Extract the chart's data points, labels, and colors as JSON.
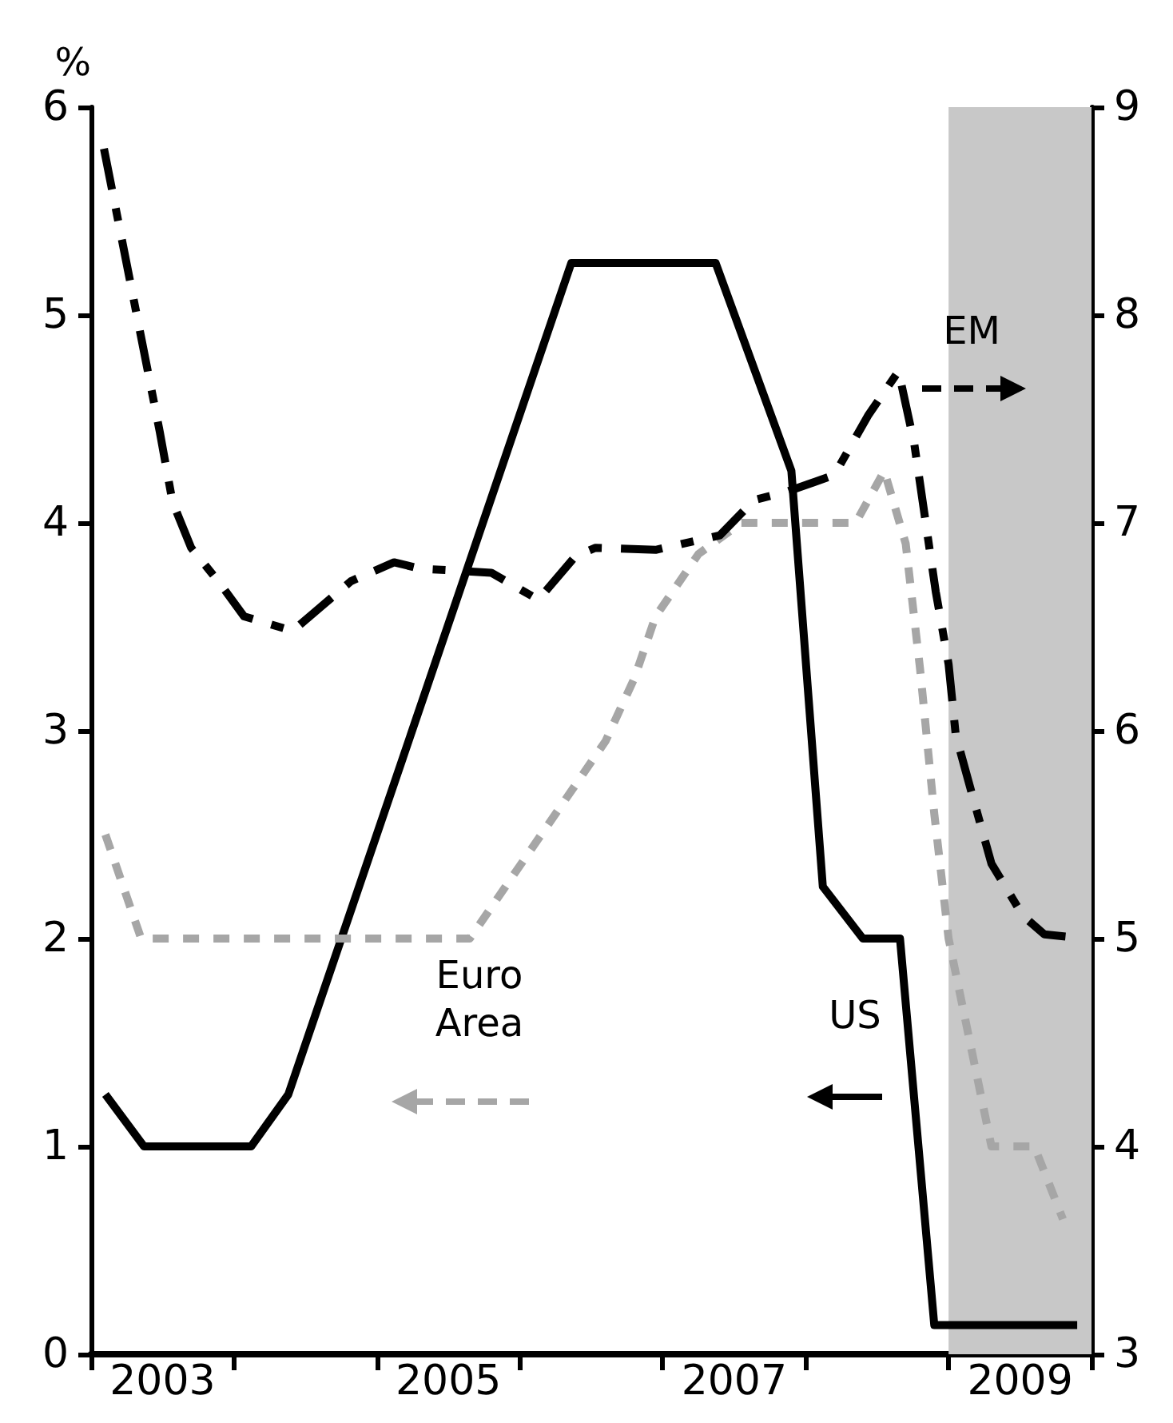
{
  "chart_data": {
    "type": "line",
    "ylabel": "%",
    "xlim": [
      2003,
      2010
    ],
    "xticks": [
      {
        "value": 2003,
        "label": null
      },
      {
        "value": 2004,
        "label": null
      },
      {
        "value": 2005,
        "label": null
      },
      {
        "value": 2006,
        "label": null
      },
      {
        "value": 2007,
        "label": null
      },
      {
        "value": 2008,
        "label": null
      },
      {
        "value": 2009,
        "label": null
      },
      {
        "value": 2010,
        "label": null
      },
      {
        "value": 2003.5,
        "label": "2003"
      },
      {
        "value": 2005.5,
        "label": "2005"
      },
      {
        "value": 2007.5,
        "label": "2007"
      },
      {
        "value": 2009.5,
        "label": "2009"
      }
    ],
    "ylim": [
      0,
      6
    ],
    "yticks": [
      0,
      1,
      2,
      3,
      4,
      5,
      6
    ],
    "y2lim": [
      3,
      9
    ],
    "y2ticks": [
      3,
      4,
      5,
      6,
      7,
      8,
      9
    ],
    "grid": false,
    "legend": false,
    "marker": "none",
    "bands": [
      {
        "axis": "x",
        "from": 2009.0,
        "to": 2010,
        "color": "#c8c8c8"
      }
    ],
    "series": [
      {
        "name": "US",
        "color": "#000000",
        "line_style": "solid",
        "x": [
          2003.1,
          2003.37,
          2004.12,
          2004.38,
          2006.36,
          2007.37,
          2007.9,
          2008.12,
          2008.4,
          2008.66,
          2008.9,
          2009.9
        ],
        "values": [
          1.25,
          1.0,
          1.0,
          1.25,
          5.25,
          5.25,
          4.25,
          2.25,
          2.0,
          2.0,
          0.14,
          0.14
        ]
      },
      {
        "name": "Euro Area",
        "color": "#a6a6a6",
        "line_style": "dotted",
        "x": [
          2003.1,
          2003.35,
          2005.65,
          2006.0,
          2006.3,
          2006.6,
          2006.8,
          2006.95,
          2007.25,
          2007.55,
          2008.35,
          2008.55,
          2008.7,
          2008.8,
          2008.9,
          2009.0,
          2009.15,
          2009.3,
          2009.6,
          2009.8
        ],
        "values": [
          2.5,
          2.0,
          2.0,
          2.35,
          2.65,
          2.95,
          3.25,
          3.55,
          3.85,
          4.0,
          4.0,
          4.25,
          3.9,
          3.3,
          2.6,
          2.0,
          1.5,
          1.0,
          1.0,
          0.65
        ]
      },
      {
        "name": "EM",
        "color": "#000000",
        "line_style": "dashed",
        "axis": "y2",
        "x": [
          2003.09,
          2003.48,
          2003.57,
          2003.7,
          2003.9,
          2004.07,
          2004.41,
          2004.82,
          2005.12,
          2005.3,
          2005.8,
          2006.13,
          2006.39,
          2006.53,
          2006.95,
          2007.4,
          2007.64,
          2007.87,
          2008.2,
          2008.44,
          2008.65,
          2008.76,
          2008.91,
          2009.0,
          2009.05,
          2009.17,
          2009.3,
          2009.52,
          2009.67,
          2009.95
        ],
        "values": [
          8.8,
          7.44,
          7.1,
          6.88,
          6.71,
          6.55,
          6.48,
          6.72,
          6.81,
          6.78,
          6.76,
          6.63,
          6.84,
          6.88,
          6.87,
          6.94,
          7.11,
          7.15,
          7.23,
          7.52,
          7.73,
          7.38,
          6.67,
          6.32,
          5.98,
          5.68,
          5.36,
          5.11,
          5.02,
          5.0
        ]
      }
    ]
  }
}
